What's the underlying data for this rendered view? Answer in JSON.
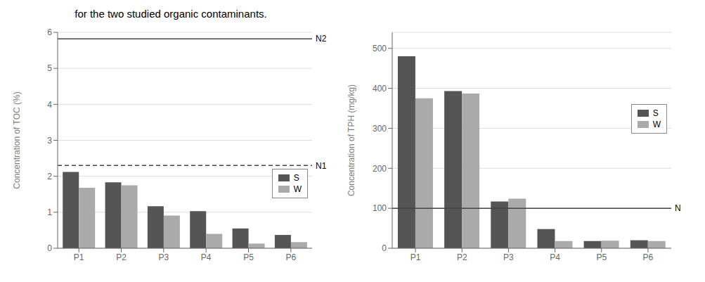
{
  "chart_data": [
    {
      "type": "bar",
      "title": "for the two studied organic contaminants.",
      "categories": [
        "P1",
        "P2",
        "P3",
        "P4",
        "P5",
        "P6"
      ],
      "series": [
        {
          "name": "S",
          "color": "#555555",
          "values": [
            2.12,
            1.83,
            1.17,
            1.03,
            0.55,
            0.37
          ]
        },
        {
          "name": "W",
          "color": "#aaaaaa",
          "values": [
            1.68,
            1.75,
            0.91,
            0.4,
            0.13,
            0.17
          ]
        }
      ],
      "y_label": "Concentration of TOC (%)",
      "ylim": [
        0,
        6
      ],
      "yticks": [
        0,
        1,
        2,
        3,
        4,
        5,
        6
      ],
      "annotations": [
        {
          "label": "N2",
          "y": 5.82,
          "line_style": "solid"
        },
        {
          "label": "N1",
          "y": 2.3,
          "line_style": "dashed"
        }
      ],
      "grid": true,
      "legend": "right"
    },
    {
      "type": "bar",
      "categories": [
        "P1",
        "P2",
        "P3",
        "P4",
        "P5",
        "P6"
      ],
      "series": [
        {
          "name": "S",
          "color": "#555555",
          "values": [
            480,
            393,
            117,
            48,
            18,
            20
          ]
        },
        {
          "name": "W",
          "color": "#aaaaaa",
          "values": [
            375,
            387,
            124,
            18,
            19,
            18
          ]
        }
      ],
      "y_label": "Concentration of TPH (mg/kg)",
      "ylim": [
        0,
        540
      ],
      "yticks": [
        0,
        100,
        200,
        300,
        400,
        500
      ],
      "annotations": [
        {
          "label": "N",
          "y": 100,
          "line_style": "solid"
        }
      ],
      "grid": true,
      "legend": "right"
    }
  ]
}
